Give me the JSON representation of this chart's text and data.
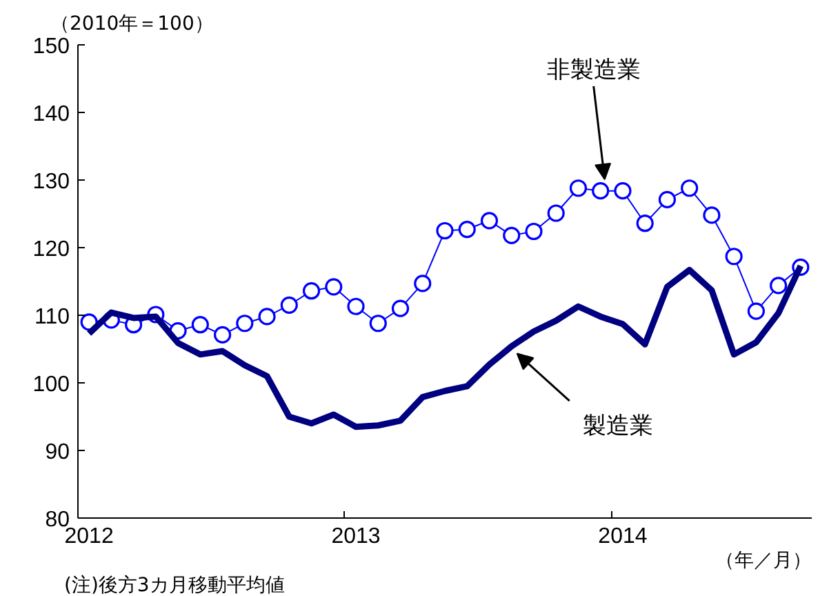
{
  "chart_data": {
    "type": "line",
    "ylabel": "（2010年＝100）",
    "xlabel": "（年／月）",
    "annotations": [
      "(注)後方3カ月移動平均値"
    ],
    "categories": [
      "2012",
      null,
      null,
      null,
      null,
      null,
      null,
      null,
      null,
      null,
      null,
      null,
      "2013",
      null,
      null,
      null,
      null,
      null,
      null,
      null,
      null,
      null,
      null,
      null,
      "2014",
      null,
      null,
      null,
      null,
      null,
      null,
      null,
      null
    ],
    "ylim": [
      80,
      150
    ],
    "yticks": [
      80,
      90,
      100,
      110,
      120,
      130,
      140,
      150
    ],
    "series": [
      {
        "name": "非製造業",
        "color": "#0000ff",
        "marker": "circle",
        "values": [
          109.0,
          109.3,
          108.6,
          110.1,
          107.7,
          108.6,
          107.1,
          108.8,
          109.8,
          111.5,
          113.6,
          114.2,
          111.3,
          108.8,
          111.0,
          114.7,
          122.5,
          122.7,
          124.0,
          121.8,
          122.4,
          125.1,
          128.8,
          128.4,
          128.4,
          123.6,
          127.1,
          128.8,
          124.8,
          118.7,
          110.6,
          114.4,
          117.1
        ]
      },
      {
        "name": "製造業",
        "color": "#000080",
        "marker": "none",
        "values": [
          107.3,
          110.4,
          109.6,
          109.8,
          105.9,
          104.2,
          104.7,
          102.6,
          101.0,
          95.0,
          94.0,
          95.3,
          93.5,
          93.7,
          94.4,
          97.9,
          98.8,
          99.5,
          102.7,
          105.4,
          107.6,
          109.2,
          111.3,
          109.8,
          108.7,
          105.7,
          114.2,
          116.7,
          113.7,
          104.2,
          106.0,
          110.3,
          117.3
        ]
      }
    ]
  }
}
